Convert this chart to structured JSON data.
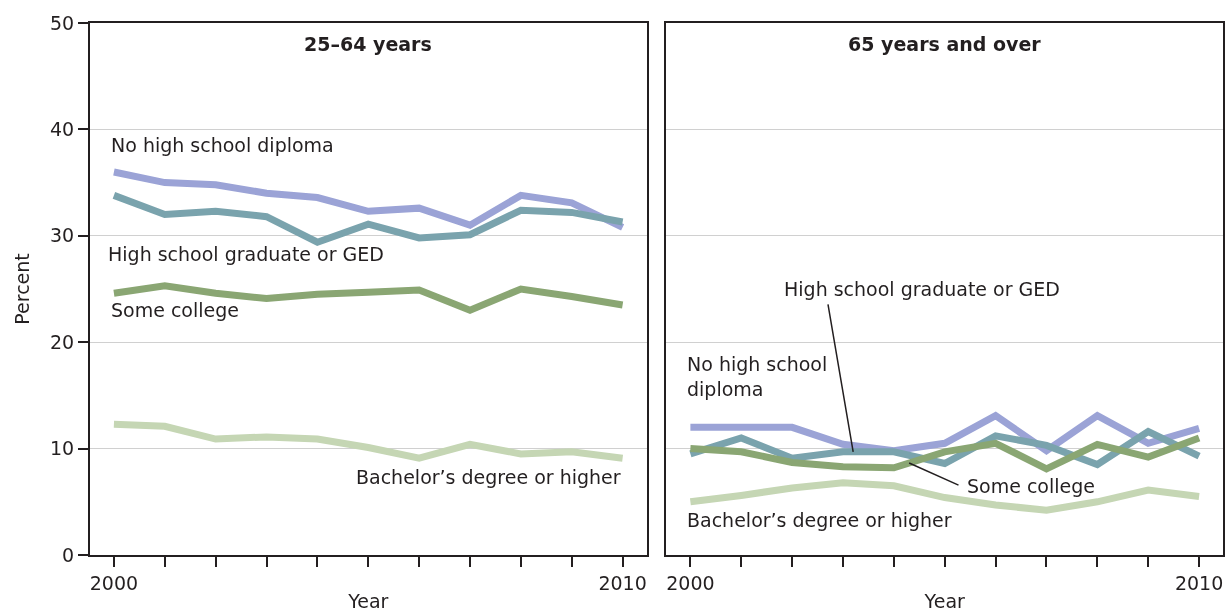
{
  "chart_data": [
    {
      "type": "line",
      "title": "25–64 years",
      "xlabel": "Year",
      "ylabel": "Percent",
      "x": [
        2000,
        2001,
        2002,
        2003,
        2004,
        2005,
        2006,
        2007,
        2008,
        2009,
        2010
      ],
      "xlim": [
        1999.53,
        2010.47
      ],
      "ylim": [
        0,
        50
      ],
      "xticks": [
        2000,
        {
          "value": 2001,
          "label": null
        },
        {
          "value": 2002,
          "label": null
        },
        {
          "value": 2003,
          "label": null
        },
        {
          "value": 2004,
          "label": null
        },
        {
          "value": 2005,
          "label": null
        },
        {
          "value": 2006,
          "label": null
        },
        {
          "value": 2007,
          "label": null
        },
        {
          "value": 2008,
          "label": null
        },
        {
          "value": 2009,
          "label": null
        },
        2010
      ],
      "yticks": [
        0,
        10,
        20,
        30,
        40,
        50
      ],
      "grid": "y",
      "legend": false,
      "marker": "none",
      "line_style": "solid",
      "series": [
        {
          "name": "No high school diploma",
          "color": "#9ba3d6",
          "values": [
            36.0,
            35.0,
            34.8,
            34.0,
            33.6,
            32.3,
            32.6,
            31.0,
            33.8,
            33.1,
            30.8
          ]
        },
        {
          "name": "High school graduate or GED",
          "color": "#7aa3ad",
          "values": [
            33.8,
            32.0,
            32.3,
            31.8,
            29.4,
            31.1,
            29.8,
            30.1,
            32.4,
            32.2,
            31.3
          ]
        },
        {
          "name": "Some college",
          "color": "#8aa673",
          "values": [
            24.6,
            25.3,
            24.6,
            24.1,
            24.5,
            24.7,
            24.9,
            23.0,
            25.0,
            24.3,
            23.5
          ]
        },
        {
          "name": "Bachelor’s degree or higher",
          "color": "#c5d6b4",
          "values": [
            12.3,
            12.1,
            10.9,
            11.1,
            10.9,
            10.1,
            9.1,
            10.4,
            9.5,
            9.7,
            9.1
          ]
        }
      ]
    },
    {
      "type": "line",
      "title": "65 years and over",
      "xlabel": "Year",
      "x": [
        2000,
        2001,
        2002,
        2003,
        2004,
        2005,
        2006,
        2007,
        2008,
        2009,
        2010
      ],
      "xlim": [
        1999.53,
        2010.47
      ],
      "ylim": [
        0,
        50
      ],
      "xticks": [
        2000,
        {
          "value": 2001,
          "label": null
        },
        {
          "value": 2002,
          "label": null
        },
        {
          "value": 2003,
          "label": null
        },
        {
          "value": 2004,
          "label": null
        },
        {
          "value": 2005,
          "label": null
        },
        {
          "value": 2006,
          "label": null
        },
        {
          "value": 2007,
          "label": null
        },
        {
          "value": 2008,
          "label": null
        },
        {
          "value": 2009,
          "label": null
        },
        2010
      ],
      "yticks": [
        0,
        10,
        20,
        30,
        40,
        50
      ],
      "tick_labels": "x",
      "grid": "y",
      "legend": false,
      "marker": "none",
      "line_style": "solid",
      "series": [
        {
          "name": "No high school diploma",
          "color": "#9ba3d6",
          "values": [
            12.0,
            12.0,
            12.0,
            10.4,
            9.8,
            10.5,
            13.1,
            9.8,
            13.1,
            10.5,
            11.9
          ]
        },
        {
          "name": "High school graduate or GED",
          "color": "#7aa3ad",
          "values": [
            9.5,
            11.0,
            9.1,
            9.7,
            9.7,
            8.6,
            11.2,
            10.3,
            8.5,
            11.6,
            9.3
          ]
        },
        {
          "name": "Some college",
          "color": "#8aa673",
          "values": [
            10.0,
            9.7,
            8.7,
            8.3,
            8.2,
            9.7,
            10.5,
            8.1,
            10.4,
            9.2,
            11.0
          ]
        },
        {
          "name": "Bachelor’s degree or higher",
          "color": "#c5d6b4",
          "values": [
            5.0,
            5.6,
            6.3,
            6.8,
            6.5,
            5.4,
            4.7,
            4.2,
            5.0,
            6.1,
            5.5
          ]
        }
      ]
    }
  ]
}
